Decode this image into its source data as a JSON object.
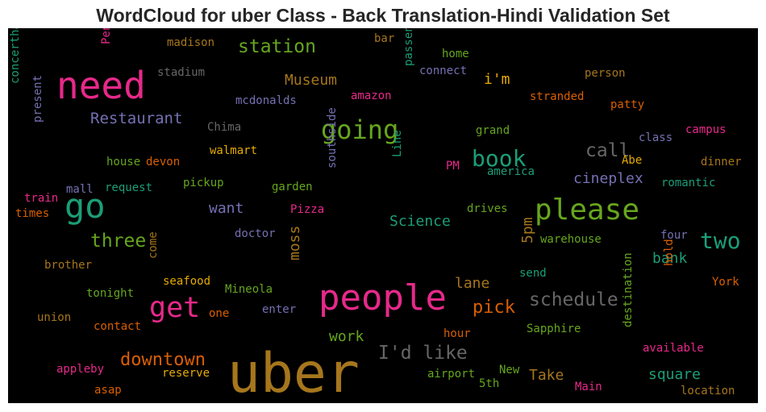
{
  "title": "WordCloud for uber Class - Back Translation-Hindi Validation Set",
  "words": [
    {
      "text": "uber",
      "color": "#a6761d"
    },
    {
      "text": "need",
      "color": "#e7298a"
    },
    {
      "text": "people",
      "color": "#e7298a"
    },
    {
      "text": "go",
      "color": "#1b9e77"
    },
    {
      "text": "please",
      "color": "#66a61e"
    },
    {
      "text": "get",
      "color": "#e7298a"
    },
    {
      "text": "going",
      "color": "#66a61e"
    },
    {
      "text": "book",
      "color": "#1b9e77"
    },
    {
      "text": "two",
      "color": "#1b9e77"
    },
    {
      "text": "schedule",
      "color": "#666666"
    },
    {
      "text": "station",
      "color": "#66a61e"
    },
    {
      "text": "call",
      "color": "#666666"
    },
    {
      "text": "three",
      "color": "#66a61e"
    },
    {
      "text": "I'd like",
      "color": "#666666"
    },
    {
      "text": "downtown",
      "color": "#d95f02"
    },
    {
      "text": "pick",
      "color": "#d95f02"
    },
    {
      "text": "Restaurant",
      "color": "#7570b3"
    },
    {
      "text": "Museum",
      "color": "#a6761d"
    },
    {
      "text": "Science",
      "color": "#1b9e77"
    },
    {
      "text": "cineplex",
      "color": "#7570b3"
    },
    {
      "text": "square",
      "color": "#1b9e77"
    },
    {
      "text": "want",
      "color": "#7570b3"
    },
    {
      "text": "work",
      "color": "#66a61e"
    },
    {
      "text": "lane",
      "color": "#a6761d"
    },
    {
      "text": "Take",
      "color": "#a6761d"
    },
    {
      "text": "bank",
      "color": "#1b9e77"
    },
    {
      "text": "i'm",
      "color": "#e6ab02"
    },
    {
      "text": "moss",
      "color": "#a6761d"
    },
    {
      "text": "5pm",
      "color": "#a6761d"
    },
    {
      "text": "madison",
      "color": "#a6761d"
    },
    {
      "text": "stadium",
      "color": "#666666"
    },
    {
      "text": "mcdonalds",
      "color": "#7570b3"
    },
    {
      "text": "Chima",
      "color": "#666666"
    },
    {
      "text": "walmart",
      "color": "#e6ab02"
    },
    {
      "text": "house",
      "color": "#66a61e"
    },
    {
      "text": "devon",
      "color": "#d95f02"
    },
    {
      "text": "mall",
      "color": "#7570b3"
    },
    {
      "text": "request",
      "color": "#1b9e77"
    },
    {
      "text": "pickup",
      "color": "#66a61e"
    },
    {
      "text": "garden",
      "color": "#66a61e"
    },
    {
      "text": "train",
      "color": "#e7298a"
    },
    {
      "text": "times",
      "color": "#d95f02"
    },
    {
      "text": "doctor",
      "color": "#7570b3"
    },
    {
      "text": "brother",
      "color": "#a6761d"
    },
    {
      "text": "seafood",
      "color": "#e6ab02"
    },
    {
      "text": "tonight",
      "color": "#66a61e"
    },
    {
      "text": "Mineola",
      "color": "#66a61e"
    },
    {
      "text": "union",
      "color": "#a6761d"
    },
    {
      "text": "one",
      "color": "#d95f02"
    },
    {
      "text": "enter",
      "color": "#7570b3"
    },
    {
      "text": "contact",
      "color": "#d95f02"
    },
    {
      "text": "appleby",
      "color": "#e7298a"
    },
    {
      "text": "reserve",
      "color": "#e6ab02"
    },
    {
      "text": "asap",
      "color": "#d95f02"
    },
    {
      "text": "airport",
      "color": "#66a61e"
    },
    {
      "text": "5th",
      "color": "#66a61e"
    },
    {
      "text": "New",
      "color": "#66a61e"
    },
    {
      "text": "hour",
      "color": "#d95f02"
    },
    {
      "text": "Sapphire",
      "color": "#66a61e"
    },
    {
      "text": "send",
      "color": "#1b9e77"
    },
    {
      "text": "warehouse",
      "color": "#66a61e"
    },
    {
      "text": "drives",
      "color": "#66a61e"
    },
    {
      "text": "Pizza",
      "color": "#e7298a"
    },
    {
      "text": "PM",
      "color": "#e7298a"
    },
    {
      "text": "america",
      "color": "#1b9e77"
    },
    {
      "text": "grand",
      "color": "#66a61e"
    },
    {
      "text": "amazon",
      "color": "#e7298a"
    },
    {
      "text": "connect",
      "color": "#7570b3"
    },
    {
      "text": "home",
      "color": "#66a61e"
    },
    {
      "text": "bar",
      "color": "#a6761d"
    },
    {
      "text": "person",
      "color": "#a6761d"
    },
    {
      "text": "stranded",
      "color": "#d95f02"
    },
    {
      "text": "patty",
      "color": "#d95f02"
    },
    {
      "text": "campus",
      "color": "#e7298a"
    },
    {
      "text": "class",
      "color": "#7570b3"
    },
    {
      "text": "Abe",
      "color": "#e6ab02"
    },
    {
      "text": "dinner",
      "color": "#a6761d"
    },
    {
      "text": "romantic",
      "color": "#1b9e77"
    },
    {
      "text": "four",
      "color": "#7570b3"
    },
    {
      "text": "York",
      "color": "#d95f02"
    },
    {
      "text": "available",
      "color": "#e7298a"
    },
    {
      "text": "Main",
      "color": "#e7298a"
    },
    {
      "text": "location",
      "color": "#a6761d"
    },
    {
      "text": "Penn",
      "color": "#e7298a"
    },
    {
      "text": "concerthall",
      "color": "#1b9e77"
    },
    {
      "text": "present",
      "color": "#7570b3"
    },
    {
      "text": "passengers",
      "color": "#1b9e77"
    },
    {
      "text": "Line",
      "color": "#1b9e77"
    },
    {
      "text": "southside",
      "color": "#7570b3"
    },
    {
      "text": "come",
      "color": "#a6761d"
    },
    {
      "text": "hold",
      "color": "#d95f02"
    },
    {
      "text": "destination",
      "color": "#66a61e"
    }
  ]
}
